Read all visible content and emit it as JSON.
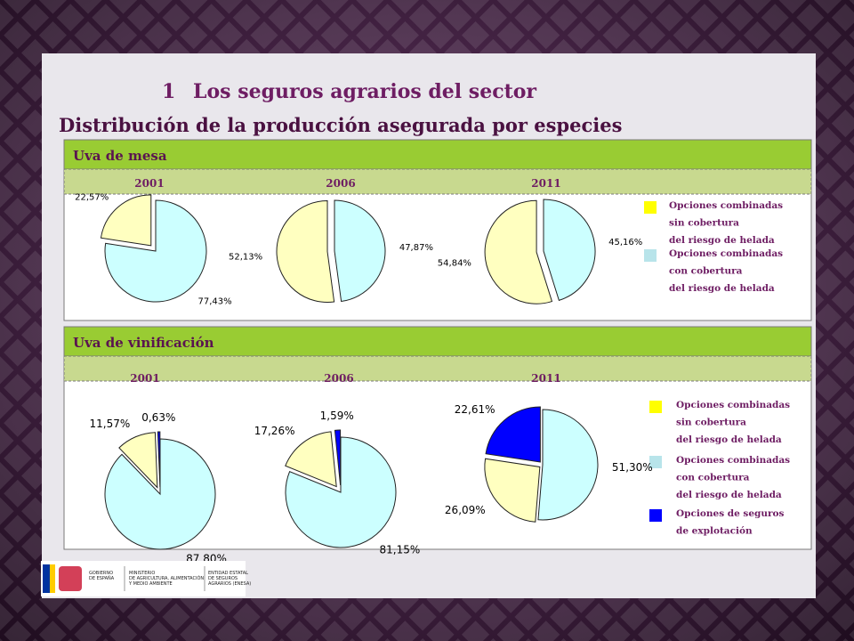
{
  "header": {
    "number": "1",
    "title": "Los seguros agrarios del sector",
    "subtitle": "Distribución de la producción asegurada por especies"
  },
  "panels": [
    {
      "title": "Uva de mesa",
      "legend": [
        {
          "lines": [
            "Opciones combinadas",
            "sin cobertura",
            "del riesgo de helada"
          ],
          "color": "#ffff00"
        },
        {
          "lines": [
            "Opciones combinadas",
            "con cobertura",
            "del riesgo de helada"
          ],
          "color": "#b8e4ea"
        }
      ]
    },
    {
      "title": "Uva de vinificación",
      "legend": [
        {
          "lines": [
            "Opciones combinadas",
            "sin cobertura",
            "del riesgo de helada"
          ],
          "color": "#ffff00"
        },
        {
          "lines": [
            "Opciones combinadas",
            "con cobertura",
            "del riesgo de helada"
          ],
          "color": "#b8e4ea"
        },
        {
          "lines": [
            "Opciones de seguros",
            "de explotación"
          ],
          "color": "#0000ff"
        }
      ]
    }
  ],
  "chart_data": [
    {
      "type": "pie",
      "title": "2001",
      "values": [
        77.43,
        22.57
      ],
      "value_labels": [
        "77,43%",
        "22,57%"
      ],
      "colors": [
        "#ccffff",
        "#ffffc0"
      ]
    },
    {
      "type": "pie",
      "title": "2006",
      "values": [
        47.87,
        52.13
      ],
      "value_labels": [
        "47,87%",
        "52,13%"
      ],
      "colors": [
        "#ccffff",
        "#ffffc0"
      ]
    },
    {
      "type": "pie",
      "title": "2011",
      "values": [
        45.16,
        54.84
      ],
      "value_labels": [
        "45,16%",
        "54,84%"
      ],
      "colors": [
        "#ccffff",
        "#ffffc0"
      ]
    },
    {
      "type": "pie",
      "title": "2001",
      "values": [
        87.8,
        11.57,
        0.63
      ],
      "value_labels": [
        "87,80%",
        "11,57%",
        "0,63%"
      ],
      "colors": [
        "#ccffff",
        "#ffffc0",
        "#0000ff"
      ]
    },
    {
      "type": "pie",
      "title": "2006",
      "values": [
        81.15,
        17.26,
        1.59
      ],
      "value_labels": [
        "81,15%",
        "17,26%",
        "1,59%"
      ],
      "colors": [
        "#ccffff",
        "#ffffc0",
        "#0000ff"
      ]
    },
    {
      "type": "pie",
      "title": "2011",
      "values": [
        51.3,
        26.09,
        22.61
      ],
      "value_labels": [
        "51,30%",
        "26,09%",
        "22,61%"
      ],
      "colors": [
        "#ccffff",
        "#ffffc0",
        "#0000ff"
      ]
    }
  ],
  "footer": {
    "government": [
      "GOBIERNO",
      "DE ESPAÑA"
    ],
    "ministry": [
      "MINISTERIO",
      "DE AGRICULTURA, ALIMENTACIÓN",
      "Y MEDIO AMBIENTE"
    ],
    "entity": [
      "ENTIDAD ESTATAL",
      "DE SEGUROS",
      "AGRARIOS (ENESA)"
    ]
  }
}
